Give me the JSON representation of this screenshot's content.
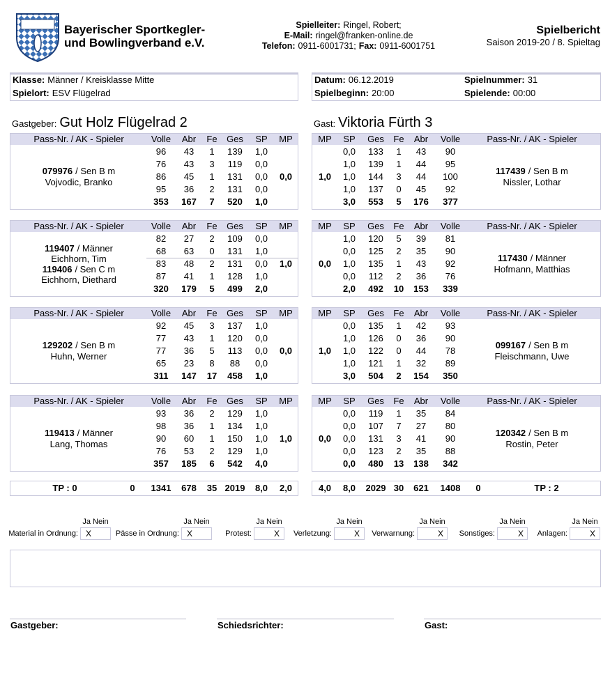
{
  "header": {
    "org": [
      "Bayerischer Sportkegler-",
      "und Bowlingverband e.V."
    ],
    "contact": [
      [
        {
          "text": "Spielleiter:",
          "bold": true
        },
        {
          "text": "Ringel, Robert;",
          "bold": false
        }
      ],
      [
        {
          "text": "E-Mail:",
          "bold": true
        },
        {
          "text": "ringel@franken-online.de",
          "bold": false
        }
      ],
      [
        {
          "text": "Telefon:",
          "bold": true
        },
        {
          "text": "0911-6001731;",
          "bold": false
        },
        {
          "text": "Fax:",
          "bold": true
        },
        {
          "text": "0911-6001751",
          "bold": false
        }
      ]
    ],
    "title": "Spielbericht",
    "subtitle": "Saison 2019-20 / 8. Spieltag"
  },
  "info": {
    "left": [
      {
        "label": "Klasse:",
        "value": "Männer / Kreisklasse Mitte"
      },
      {
        "label": "Spielort:",
        "value": "ESV Flügelrad"
      }
    ],
    "right": [
      {
        "label": "Datum:",
        "value": "06.12.2019"
      },
      {
        "label": "Spielbeginn:",
        "value": "20:00"
      },
      {
        "label": "Spielnummer:",
        "value": "31"
      },
      {
        "label": "Spielende:",
        "value": "00:00"
      }
    ]
  },
  "teams": {
    "host": {
      "label": "Gastgeber:",
      "name": "Gut Holz Flügelrad 2"
    },
    "guest": {
      "label": "Gast:",
      "name": "Viktoria Fürth 3"
    }
  },
  "home_columns": [
    "Pass-Nr. / AK - Spieler",
    "Volle",
    "Abr",
    "Fe",
    "Ges",
    "SP",
    "MP"
  ],
  "away_columns": [
    "MP",
    "SP",
    "Ges",
    "Fe",
    "Abr",
    "Volle",
    "Pass-Nr. / AK - Spieler"
  ],
  "blocks": [
    {
      "home": {
        "players": [
          {
            "pass": "079976",
            "ak": "/ Sen B m",
            "name": "Vojvodic, Branko"
          }
        ],
        "rows": [
          [
            "96",
            "43",
            "1",
            "139",
            "1,0"
          ],
          [
            "76",
            "43",
            "3",
            "119",
            "0,0"
          ],
          [
            "86",
            "45",
            "1",
            "131",
            "0,0"
          ],
          [
            "95",
            "36",
            "2",
            "131",
            "0,0"
          ]
        ],
        "total": [
          "353",
          "167",
          "7",
          "520",
          "1,0"
        ],
        "mp": "0,0"
      },
      "away": {
        "players": [
          {
            "pass": "117439",
            "ak": "/ Sen B m",
            "name": "Nissler, Lothar"
          }
        ],
        "rows": [
          [
            "0,0",
            "133",
            "1",
            "43",
            "90"
          ],
          [
            "1,0",
            "139",
            "1",
            "44",
            "95"
          ],
          [
            "1,0",
            "144",
            "3",
            "44",
            "100"
          ],
          [
            "1,0",
            "137",
            "0",
            "45",
            "92"
          ]
        ],
        "total": [
          "3,0",
          "553",
          "5",
          "176",
          "377"
        ],
        "mp": "1,0"
      }
    },
    {
      "home": {
        "players": [
          {
            "pass": "119407",
            "ak": "/ Männer",
            "name": "Eichhorn, Tim"
          },
          {
            "pass": "119406",
            "ak": "/ Sen C m",
            "name": "Eichhorn, Diethard"
          }
        ],
        "rows": [
          [
            "82",
            "27",
            "2",
            "109",
            "0,0"
          ],
          [
            "68",
            "63",
            "0",
            "131",
            "1,0"
          ],
          [
            "83",
            "48",
            "2",
            "131",
            "0,0"
          ],
          [
            "87",
            "41",
            "1",
            "128",
            "1,0"
          ]
        ],
        "total": [
          "320",
          "179",
          "5",
          "499",
          "2,0"
        ],
        "mp": "1,0"
      },
      "away": {
        "players": [
          {
            "pass": "117430",
            "ak": "/ Männer",
            "name": "Hofmann, Matthias"
          }
        ],
        "rows": [
          [
            "1,0",
            "120",
            "5",
            "39",
            "81"
          ],
          [
            "0,0",
            "125",
            "2",
            "35",
            "90"
          ],
          [
            "1,0",
            "135",
            "1",
            "43",
            "92"
          ],
          [
            "0,0",
            "112",
            "2",
            "36",
            "76"
          ]
        ],
        "total": [
          "2,0",
          "492",
          "10",
          "153",
          "339"
        ],
        "mp": "0,0"
      }
    },
    {
      "home": {
        "players": [
          {
            "pass": "129202",
            "ak": "/ Sen B m",
            "name": "Huhn, Werner"
          }
        ],
        "rows": [
          [
            "92",
            "45",
            "3",
            "137",
            "1,0"
          ],
          [
            "77",
            "43",
            "1",
            "120",
            "0,0"
          ],
          [
            "77",
            "36",
            "5",
            "113",
            "0,0"
          ],
          [
            "65",
            "23",
            "8",
            "88",
            "0,0"
          ]
        ],
        "total": [
          "311",
          "147",
          "17",
          "458",
          "1,0"
        ],
        "mp": "0,0"
      },
      "away": {
        "players": [
          {
            "pass": "099167",
            "ak": "/ Sen B m",
            "name": "Fleischmann, Uwe"
          }
        ],
        "rows": [
          [
            "0,0",
            "135",
            "1",
            "42",
            "93"
          ],
          [
            "1,0",
            "126",
            "0",
            "36",
            "90"
          ],
          [
            "1,0",
            "122",
            "0",
            "44",
            "78"
          ],
          [
            "1,0",
            "121",
            "1",
            "32",
            "89"
          ]
        ],
        "total": [
          "3,0",
          "504",
          "2",
          "154",
          "350"
        ],
        "mp": "1,0"
      }
    },
    {
      "home": {
        "players": [
          {
            "pass": "119413",
            "ak": "/ Männer",
            "name": "Lang, Thomas"
          }
        ],
        "rows": [
          [
            "93",
            "36",
            "2",
            "129",
            "1,0"
          ],
          [
            "98",
            "36",
            "1",
            "134",
            "1,0"
          ],
          [
            "90",
            "60",
            "1",
            "150",
            "1,0"
          ],
          [
            "76",
            "53",
            "2",
            "129",
            "1,0"
          ]
        ],
        "total": [
          "357",
          "185",
          "6",
          "542",
          "4,0"
        ],
        "mp": "1,0"
      },
      "away": {
        "players": [
          {
            "pass": "120342",
            "ak": "/ Sen B m",
            "name": "Rostin, Peter"
          }
        ],
        "rows": [
          [
            "0,0",
            "119",
            "1",
            "35",
            "84"
          ],
          [
            "0,0",
            "107",
            "7",
            "27",
            "80"
          ],
          [
            "0,0",
            "131",
            "3",
            "41",
            "90"
          ],
          [
            "0,0",
            "123",
            "2",
            "35",
            "88"
          ]
        ],
        "total": [
          "0,0",
          "480",
          "13",
          "138",
          "342"
        ],
        "mp": "0,0"
      }
    }
  ],
  "totals": {
    "home": [
      "TP : 0",
      "0",
      "1341",
      "678",
      "35",
      "2019",
      "8,0",
      "2,0"
    ],
    "away": [
      "4,0",
      "8,0",
      "2029",
      "30",
      "621",
      "1408",
      "0",
      "TP : 2"
    ]
  },
  "checks": [
    {
      "label": "Material in Ordnung:",
      "header": "Ja Nein",
      "mark": "X"
    },
    {
      "label": "Pässe in Ordnung:",
      "header": "Ja Nein",
      "mark": "X"
    },
    {
      "label": "Protest:",
      "header": "Ja Nein",
      "mark": "X"
    },
    {
      "label": "Verletzung:",
      "header": "Ja Nein",
      "mark": "X"
    },
    {
      "label": "Verwarnung:",
      "header": "Ja Nein",
      "mark": "X"
    },
    {
      "label": "Sonstiges:",
      "header": "Ja Nein",
      "mark": "X"
    },
    {
      "label": "Anlagen:",
      "header": "Ja Nein",
      "mark": "X"
    }
  ],
  "signatures": [
    "Gastgeber:",
    "Schiedsrichter:",
    "Gast:"
  ]
}
